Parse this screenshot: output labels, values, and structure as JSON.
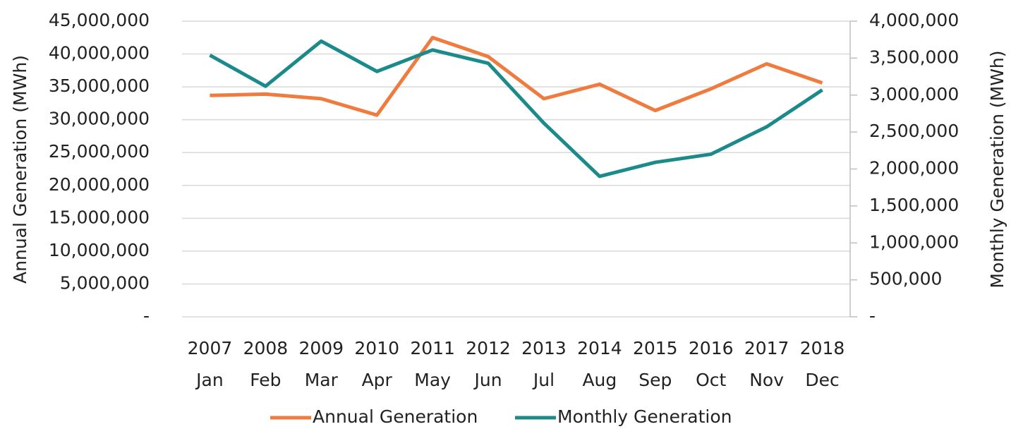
{
  "chart_data": {
    "type": "line",
    "y_label": "Annual Generation (MWh)",
    "y2_label": "Monthly Generation (MWh)",
    "categories": [
      [
        "2007",
        "Jan"
      ],
      [
        "2008",
        "Feb"
      ],
      [
        "2009",
        "Mar"
      ],
      [
        "2010",
        "Apr"
      ],
      [
        "2011",
        "May"
      ],
      [
        "2012",
        "Jun"
      ],
      [
        "2013",
        "Jul"
      ],
      [
        "2014",
        "Aug"
      ],
      [
        "2015",
        "Sep"
      ],
      [
        "2016",
        "Oct"
      ],
      [
        "2017",
        "Nov"
      ],
      [
        "2018",
        "Dec"
      ]
    ],
    "series": [
      {
        "name": "Annual Generation",
        "color": "#f07b3f",
        "axis": "y",
        "values": [
          33700000,
          33900000,
          33200000,
          30700000,
          42500000,
          39600000,
          33200000,
          35400000,
          31400000,
          34700000,
          38500000,
          35600000
        ]
      },
      {
        "name": "Monthly Generation",
        "color": "#1b8a8a",
        "axis": "y2",
        "values": [
          3540000,
          3120000,
          3730000,
          3320000,
          3610000,
          3430000,
          2620000,
          1900000,
          2090000,
          2200000,
          2570000,
          3070000
        ]
      }
    ],
    "ylim": [
      0,
      45000000
    ],
    "yticks": [
      {
        "value": 0,
        "label": "-"
      },
      {
        "value": 5000000,
        "label": "5,000,000"
      },
      {
        "value": 10000000,
        "label": "10,000,000"
      },
      {
        "value": 15000000,
        "label": "15,000,000"
      },
      {
        "value": 20000000,
        "label": "20,000,000"
      },
      {
        "value": 25000000,
        "label": "25,000,000"
      },
      {
        "value": 30000000,
        "label": "30,000,000"
      },
      {
        "value": 35000000,
        "label": "35,000,000"
      },
      {
        "value": 40000000,
        "label": "40,000,000"
      },
      {
        "value": 45000000,
        "label": "45,000,000"
      }
    ],
    "y2lim": [
      0,
      4000000
    ],
    "y2ticks": [
      {
        "value": 0,
        "label": "-"
      },
      {
        "value": 500000,
        "label": "500,000"
      },
      {
        "value": 1000000,
        "label": "1,000,000"
      },
      {
        "value": 1500000,
        "label": "1,500,000"
      },
      {
        "value": 2000000,
        "label": "2,000,000"
      },
      {
        "value": 2500000,
        "label": "2,500,000"
      },
      {
        "value": 3000000,
        "label": "3,000,000"
      },
      {
        "value": 3500000,
        "label": "3,500,000"
      },
      {
        "value": 4000000,
        "label": "4,000,000"
      }
    ],
    "grid": true,
    "legend": "bottom"
  }
}
